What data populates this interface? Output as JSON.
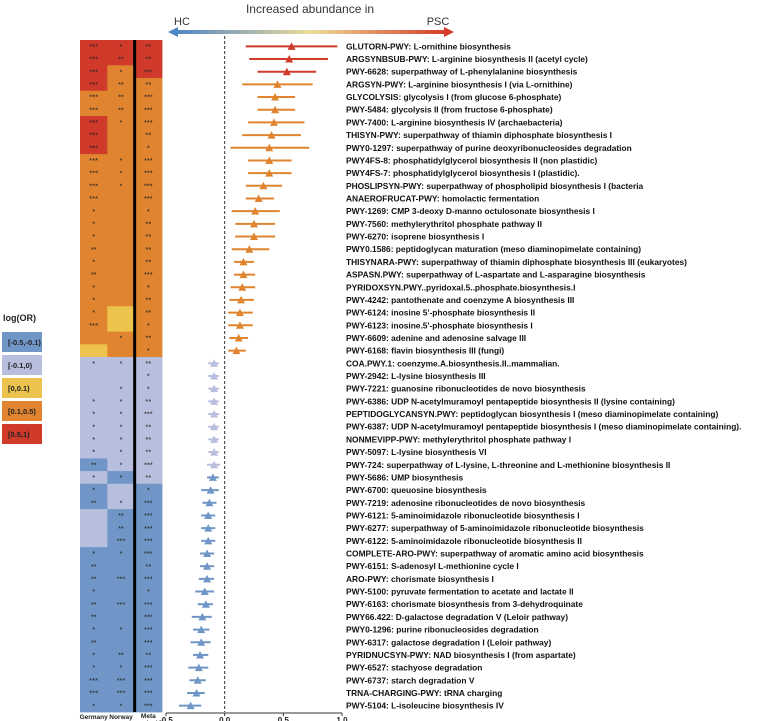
{
  "colors": {
    "neg_strong": "#6f96c6",
    "neg_weak": "#b8bedd",
    "pos_weak": "#ecc34c",
    "pos_mid": "#e0842f",
    "pos_strong": "#cf3a2b"
  },
  "header": {
    "title": "Increased abundance in",
    "left": "HC",
    "right": "PSC"
  },
  "legend": {
    "title": "log(OR)",
    "items": [
      {
        "label": "[-0.5,-0.1)",
        "color": "#6f96c6"
      },
      {
        "label": "[-0.1,0)",
        "color": "#b8bedd"
      },
      {
        "label": "[0,0.1)",
        "color": "#ecc34c"
      },
      {
        "label": "[0.1,0.5)",
        "color": "#e0842f"
      },
      {
        "label": "[0.5,1)",
        "color": "#cf3a2b"
      }
    ]
  },
  "columns": [
    "Germany",
    "Norway",
    "Meta analysis"
  ],
  "chart_data": {
    "type": "forest+heatmap",
    "x_axis": {
      "min": -0.5,
      "max": 1.0,
      "ticks": [
        "-0.5",
        "0.0",
        "0.5",
        "1.0"
      ],
      "reference_line": 0
    },
    "rows": [
      {
        "label": "GLUTORN-PWY: L-ornithine biosynthesis",
        "est": 0.57,
        "lo": 0.18,
        "hi": 0.96,
        "heat": [
          "pos_strong",
          "pos_strong",
          "pos_strong"
        ],
        "sig": [
          "***",
          "*",
          "**"
        ]
      },
      {
        "label": "ARGSYNBSUB-PWY: L-arginine biosynthesis II (acetyl cycle)",
        "est": 0.55,
        "lo": 0.21,
        "hi": 0.88,
        "heat": [
          "pos_strong",
          "pos_strong",
          "pos_strong"
        ],
        "sig": [
          "***",
          "**",
          "**"
        ]
      },
      {
        "label": "PWY-6628: superpathway of L-phenylalanine biosynthesis",
        "est": 0.53,
        "lo": 0.28,
        "hi": 0.78,
        "heat": [
          "pos_strong",
          "pos_mid",
          "pos_strong"
        ],
        "sig": [
          "***",
          "*",
          "***"
        ]
      },
      {
        "label": "ARGSYN-PWY: L-arginine biosynthesis I (via L-ornithine)",
        "est": 0.45,
        "lo": 0.15,
        "hi": 0.75,
        "heat": [
          "pos_strong",
          "pos_mid",
          "pos_mid"
        ],
        "sig": [
          "***",
          "**",
          "**"
        ]
      },
      {
        "label": "GLYCOLYSIS: glycolysis I (from glucose 6-phosphate)",
        "est": 0.43,
        "lo": 0.28,
        "hi": 0.6,
        "heat": [
          "pos_mid",
          "pos_mid",
          "pos_mid"
        ],
        "sig": [
          "***",
          "**",
          "***"
        ]
      },
      {
        "label": "PWY-5484: glycolysis II (from fructose 6-phosphate)",
        "est": 0.43,
        "lo": 0.28,
        "hi": 0.6,
        "heat": [
          "pos_mid",
          "pos_mid",
          "pos_mid"
        ],
        "sig": [
          "***",
          "**",
          "***"
        ]
      },
      {
        "label": "PWY-7400: L-arginine biosynthesis IV (archaebacteria)",
        "est": 0.42,
        "lo": 0.2,
        "hi": 0.68,
        "heat": [
          "pos_strong",
          "pos_mid",
          "pos_mid"
        ],
        "sig": [
          "***",
          "*",
          "***"
        ]
      },
      {
        "label": "THISYN-PWY: superpathway of thiamin diphosphate biosynthesis I",
        "est": 0.4,
        "lo": 0.15,
        "hi": 0.65,
        "heat": [
          "pos_strong",
          "pos_mid",
          "pos_mid"
        ],
        "sig": [
          "***",
          "",
          "**"
        ]
      },
      {
        "label": "PWY0-1297: superpathway of purine deoxyribonucleosides degradation",
        "est": 0.38,
        "lo": 0.05,
        "hi": 0.72,
        "heat": [
          "pos_strong",
          "pos_mid",
          "pos_mid"
        ],
        "sig": [
          "***",
          "",
          "*"
        ]
      },
      {
        "label": "PWY4FS-8: phosphatidylglycerol biosynthesis II (non plastidic)",
        "est": 0.38,
        "lo": 0.2,
        "hi": 0.57,
        "heat": [
          "pos_mid",
          "pos_mid",
          "pos_mid"
        ],
        "sig": [
          "***",
          "*",
          "***"
        ]
      },
      {
        "label": "PWY4FS-7: phosphatidylglycerol biosynthesis I (plastidic).",
        "est": 0.38,
        "lo": 0.2,
        "hi": 0.57,
        "heat": [
          "pos_mid",
          "pos_mid",
          "pos_mid"
        ],
        "sig": [
          "***",
          "*",
          "***"
        ]
      },
      {
        "label": "PHOSLIPSYN-PWY: superpathway of phospholipid biosynthesis I (bacteria",
        "est": 0.33,
        "lo": 0.18,
        "hi": 0.49,
        "heat": [
          "pos_mid",
          "pos_mid",
          "pos_mid"
        ],
        "sig": [
          "***",
          "*",
          "***"
        ]
      },
      {
        "label": "ANAEROFRUCAT-PWY: homolactic fermentation",
        "est": 0.29,
        "lo": 0.18,
        "hi": 0.42,
        "heat": [
          "pos_mid",
          "pos_mid",
          "pos_mid"
        ],
        "sig": [
          "***",
          "",
          "***"
        ]
      },
      {
        "label": "PWY-1269: CMP 3-deoxy D-manno octulosonate biosynthesis I",
        "est": 0.26,
        "lo": 0.06,
        "hi": 0.47,
        "heat": [
          "pos_mid",
          "pos_mid",
          "pos_mid"
        ],
        "sig": [
          "*",
          "",
          "*"
        ]
      },
      {
        "label": "PWY-7560: methylerythritol phosphate pathway II",
        "est": 0.25,
        "lo": 0.09,
        "hi": 0.43,
        "heat": [
          "pos_mid",
          "pos_mid",
          "pos_mid"
        ],
        "sig": [
          "*",
          "",
          "**"
        ]
      },
      {
        "label": "PWY-6270: isoprene biosynthesis I",
        "est": 0.25,
        "lo": 0.09,
        "hi": 0.43,
        "heat": [
          "pos_mid",
          "pos_mid",
          "pos_mid"
        ],
        "sig": [
          "*",
          "",
          "**"
        ]
      },
      {
        "label": "PWY0.1586: peptidoglycan maturation (meso diaminopimelate containing)",
        "est": 0.21,
        "lo": 0.06,
        "hi": 0.38,
        "heat": [
          "pos_mid",
          "pos_mid",
          "pos_mid"
        ],
        "sig": [
          "**",
          "",
          "**"
        ]
      },
      {
        "label": "THISYNARA-PWY: superpathway of thiamin diphosphate biosynthesis III (eukaryotes)",
        "est": 0.16,
        "lo": 0.08,
        "hi": 0.25,
        "heat": [
          "pos_mid",
          "pos_mid",
          "pos_mid"
        ],
        "sig": [
          "*",
          "",
          "**"
        ]
      },
      {
        "label": "ASPASN.PWY: superpathway of L-aspartate and L-asparagine biosynthesis",
        "est": 0.16,
        "lo": 0.08,
        "hi": 0.26,
        "heat": [
          "pos_mid",
          "pos_mid",
          "pos_mid"
        ],
        "sig": [
          "**",
          "",
          "***"
        ]
      },
      {
        "label": "PYRIDOXSYN.PWY..pyridoxal.5..phosphate.biosynthesis.I",
        "est": 0.15,
        "lo": 0.05,
        "hi": 0.26,
        "heat": [
          "pos_mid",
          "pos_mid",
          "pos_mid"
        ],
        "sig": [
          "*",
          "",
          "*"
        ]
      },
      {
        "label": "PWY-4242: pantothenate and coenzyme A biosynthesis III",
        "est": 0.14,
        "lo": 0.04,
        "hi": 0.25,
        "heat": [
          "pos_mid",
          "pos_mid",
          "pos_mid"
        ],
        "sig": [
          "*",
          "",
          "**"
        ]
      },
      {
        "label": "PWY-6124: inosine 5'-phosphate biosynthesis II",
        "est": 0.13,
        "lo": 0.03,
        "hi": 0.24,
        "heat": [
          "pos_mid",
          "pos_weak",
          "pos_mid"
        ],
        "sig": [
          "*",
          "",
          "**"
        ]
      },
      {
        "label": "PWY-6123: inosine.5'-phosphate biosynthesis I",
        "est": 0.13,
        "lo": 0.03,
        "hi": 0.24,
        "heat": [
          "pos_mid",
          "pos_weak",
          "pos_mid"
        ],
        "sig": [
          "***",
          "",
          "*"
        ]
      },
      {
        "label": "PWY-6609: adenine and adenosine salvage III",
        "est": 0.12,
        "lo": 0.04,
        "hi": 0.2,
        "heat": [
          "pos_mid",
          "pos_mid",
          "pos_mid"
        ],
        "sig": [
          "",
          "*",
          "**"
        ]
      },
      {
        "label": "PWY-6168: flavin biosynthesis III (fungi)",
        "est": 0.1,
        "lo": 0.03,
        "hi": 0.18,
        "heat": [
          "pos_weak",
          "pos_mid",
          "pos_mid"
        ],
        "sig": [
          "",
          "",
          "*"
        ]
      },
      {
        "label": "COA.PWY.1: coenzyme.A.biosynthesis.II..mammalian.",
        "est": -0.09,
        "lo": -0.14,
        "hi": -0.05,
        "heat": [
          "neg_weak",
          "neg_weak",
          "neg_weak"
        ],
        "sig": [
          "*",
          "*",
          "**"
        ]
      },
      {
        "label": "PWY-2942: L-lysine biosynthesis III",
        "est": -0.09,
        "lo": -0.14,
        "hi": -0.05,
        "heat": [
          "neg_weak",
          "neg_weak",
          "neg_weak"
        ],
        "sig": [
          "",
          "",
          "*"
        ]
      },
      {
        "label": "PWY-7221: guanosine ribonucleotides de novo biosynthesis",
        "est": -0.09,
        "lo": -0.14,
        "hi": -0.05,
        "heat": [
          "neg_weak",
          "neg_weak",
          "neg_weak"
        ],
        "sig": [
          "",
          "*",
          "*"
        ]
      },
      {
        "label": "PWY-6386: UDP N-acetylmuramoyl pentapeptide biosynthesis II (lysine containing)",
        "est": -0.09,
        "lo": -0.14,
        "hi": -0.05,
        "heat": [
          "neg_weak",
          "neg_weak",
          "neg_weak"
        ],
        "sig": [
          "*",
          "*",
          "**"
        ]
      },
      {
        "label": "PEPTIDOGLYCANSYN.PWY: peptidoglycan biosynthesis I (meso diaminopimelate containing)",
        "est": -0.09,
        "lo": -0.14,
        "hi": -0.05,
        "heat": [
          "neg_weak",
          "neg_weak",
          "neg_weak"
        ],
        "sig": [
          "*",
          "*",
          "***"
        ]
      },
      {
        "label": "PWY-6387: UDP N-acetylmuramoyl pentapeptide biosynthesis I (meso diaminopimelate containing).",
        "est": -0.09,
        "lo": -0.14,
        "hi": -0.05,
        "heat": [
          "neg_weak",
          "neg_weak",
          "neg_weak"
        ],
        "sig": [
          "*",
          "*",
          "**"
        ]
      },
      {
        "label": "NONMEVIPP-PWY: methylerythritol phosphate pathway I",
        "est": -0.09,
        "lo": -0.14,
        "hi": -0.05,
        "heat": [
          "neg_weak",
          "neg_weak",
          "neg_weak"
        ],
        "sig": [
          "*",
          "*",
          "**"
        ]
      },
      {
        "label": "PWY-5097: L-lysine biosynthesis VI",
        "est": -0.09,
        "lo": -0.14,
        "hi": -0.05,
        "heat": [
          "neg_weak",
          "neg_weak",
          "neg_weak"
        ],
        "sig": [
          "*",
          "*",
          "**"
        ]
      },
      {
        "label": "PWY-724: superpathway of L-lysine, L-threonine and L-methionine biosynthesis II",
        "est": -0.09,
        "lo": -0.15,
        "hi": -0.04,
        "heat": [
          "neg_strong",
          "neg_weak",
          "neg_weak"
        ],
        "sig": [
          "**",
          "*",
          "***"
        ]
      },
      {
        "label": "PWY-5686: UMP biosynthesis",
        "est": -0.1,
        "lo": -0.15,
        "hi": -0.05,
        "heat": [
          "neg_weak",
          "neg_strong",
          "neg_weak"
        ],
        "sig": [
          "*",
          "*",
          "**"
        ]
      },
      {
        "label": "PWY-6700: queuosine biosynthesis",
        "est": -0.12,
        "lo": -0.2,
        "hi": -0.05,
        "heat": [
          "neg_strong",
          "neg_weak",
          "neg_strong"
        ],
        "sig": [
          "*",
          "",
          "*"
        ]
      },
      {
        "label": "PWY-7219: adenosine ribonucleotides de novo biosynthesis",
        "est": -0.13,
        "lo": -0.19,
        "hi": -0.07,
        "heat": [
          "neg_strong",
          "neg_weak",
          "neg_strong"
        ],
        "sig": [
          "**",
          "*",
          "***"
        ]
      },
      {
        "label": "PWY-6121: 5-aminoimidazole ribonucleotide biosynthesis I",
        "est": -0.14,
        "lo": -0.2,
        "hi": -0.08,
        "heat": [
          "neg_weak",
          "neg_strong",
          "neg_strong"
        ],
        "sig": [
          "",
          "**",
          "***"
        ]
      },
      {
        "label": "PWY-6277: superpathway of 5-aminoimidazole ribonucleotide biosynthesis",
        "est": -0.14,
        "lo": -0.2,
        "hi": -0.08,
        "heat": [
          "neg_weak",
          "neg_strong",
          "neg_strong"
        ],
        "sig": [
          "",
          "**",
          "***"
        ]
      },
      {
        "label": "PWY-6122: 5-aminoimidazole ribonucleotide biosynthesis II",
        "est": -0.14,
        "lo": -0.2,
        "hi": -0.08,
        "heat": [
          "neg_weak",
          "neg_strong",
          "neg_strong"
        ],
        "sig": [
          "",
          "***",
          "***"
        ]
      },
      {
        "label": "COMPLETE-ARO-PWY: superpathway of aromatic amino acid biosynthesis",
        "est": -0.15,
        "lo": -0.21,
        "hi": -0.09,
        "heat": [
          "neg_strong",
          "neg_strong",
          "neg_strong"
        ],
        "sig": [
          "*",
          "*",
          "***"
        ]
      },
      {
        "label": "PWY-6151: S-adenosyl L-methionine cycle I",
        "est": -0.15,
        "lo": -0.21,
        "hi": -0.09,
        "heat": [
          "neg_strong",
          "neg_strong",
          "neg_strong"
        ],
        "sig": [
          "**",
          "",
          "**"
        ]
      },
      {
        "label": "ARO-PWY: chorismate biosynthesis I",
        "est": -0.15,
        "lo": -0.22,
        "hi": -0.09,
        "heat": [
          "neg_strong",
          "neg_strong",
          "neg_strong"
        ],
        "sig": [
          "**",
          "***",
          "***"
        ]
      },
      {
        "label": "PWY-5100: pyruvate fermentation to acetate and lactate II",
        "est": -0.17,
        "lo": -0.25,
        "hi": -0.09,
        "heat": [
          "neg_strong",
          "neg_strong",
          "neg_strong"
        ],
        "sig": [
          "*",
          "",
          "*"
        ]
      },
      {
        "label": "PWY-6163: chorismate biosynthesis from 3-dehydroquinate",
        "est": -0.16,
        "lo": -0.23,
        "hi": -0.1,
        "heat": [
          "neg_strong",
          "neg_strong",
          "neg_strong"
        ],
        "sig": [
          "**",
          "***",
          "***"
        ]
      },
      {
        "label": "PWY66.422: D-galactose degradation V (Leloir pathway)",
        "est": -0.19,
        "lo": -0.28,
        "hi": -0.11,
        "heat": [
          "neg_strong",
          "neg_strong",
          "neg_strong"
        ],
        "sig": [
          "**",
          "",
          "***"
        ]
      },
      {
        "label": "PWY0-1296: purine ribonucleosides degradation",
        "est": -0.2,
        "lo": -0.27,
        "hi": -0.13,
        "heat": [
          "neg_strong",
          "neg_strong",
          "neg_strong"
        ],
        "sig": [
          "*",
          "*",
          "***"
        ]
      },
      {
        "label": "PWY-6317: galactose degradation I (Leloir pathway)",
        "est": -0.2,
        "lo": -0.29,
        "hi": -0.12,
        "heat": [
          "neg_strong",
          "neg_strong",
          "neg_strong"
        ],
        "sig": [
          "**",
          "",
          "***"
        ]
      },
      {
        "label": "PYRIDNUCSYN-PWY: NAD biosynthesis I (from aspartate)",
        "est": -0.21,
        "lo": -0.27,
        "hi": -0.14,
        "heat": [
          "neg_strong",
          "neg_strong",
          "neg_strong"
        ],
        "sig": [
          "*",
          "**",
          "**"
        ]
      },
      {
        "label": "PWY-6527: stachyose degradation",
        "est": -0.22,
        "lo": -0.31,
        "hi": -0.14,
        "heat": [
          "neg_strong",
          "neg_strong",
          "neg_strong"
        ],
        "sig": [
          "*",
          "*",
          "***"
        ]
      },
      {
        "label": "PWY-6737: starch degradation V",
        "est": -0.23,
        "lo": -0.3,
        "hi": -0.16,
        "heat": [
          "neg_strong",
          "neg_strong",
          "neg_strong"
        ],
        "sig": [
          "***",
          "***",
          "***"
        ]
      },
      {
        "label": "TRNA-CHARGING-PWY: tRNA charging",
        "est": -0.24,
        "lo": -0.32,
        "hi": -0.17,
        "heat": [
          "neg_strong",
          "neg_strong",
          "neg_strong"
        ],
        "sig": [
          "***",
          "***",
          "***"
        ]
      },
      {
        "label": "PWY-5104: L-isoleucine biosynthesis IV",
        "est": -0.29,
        "lo": -0.39,
        "hi": -0.2,
        "heat": [
          "neg_strong",
          "neg_strong",
          "neg_strong"
        ],
        "sig": [
          "*",
          "*",
          "***"
        ]
      }
    ]
  }
}
